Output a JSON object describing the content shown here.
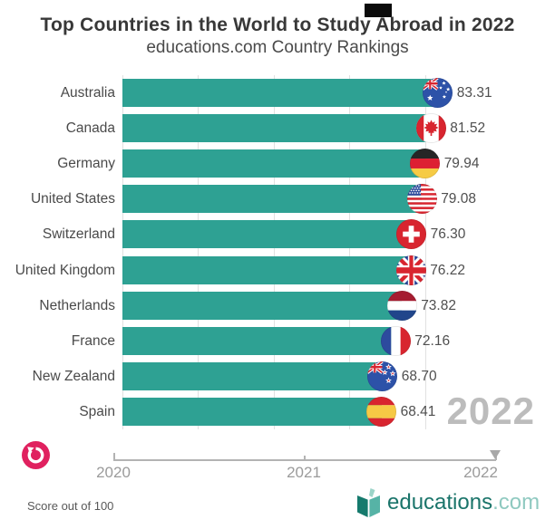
{
  "header": {
    "title": "Top Countries in the World to Study Abroad in 2022",
    "subtitle": "educations.com Country Rankings"
  },
  "chart_data": {
    "type": "bar",
    "orientation": "horizontal",
    "title": "Top Countries in the World to Study Abroad in 2022",
    "subtitle": "educations.com Country Rankings",
    "categories": [
      "Australia",
      "Canada",
      "Germany",
      "United States",
      "Switzerland",
      "United Kingdom",
      "Netherlands",
      "France",
      "New Zealand",
      "Spain"
    ],
    "values": [
      83.31,
      81.52,
      79.94,
      79.08,
      76.3,
      76.22,
      73.82,
      72.16,
      68.7,
      68.41
    ],
    "value_labels": [
      "83.31",
      "81.52",
      "79.94",
      "79.08",
      "76.30",
      "76.22",
      "73.82",
      "72.16",
      "68.70",
      "68.41"
    ],
    "flags": [
      "australia",
      "canada",
      "germany",
      "united-states",
      "switzerland",
      "united-kingdom",
      "netherlands",
      "france",
      "new-zealand",
      "spain"
    ],
    "xlim": [
      0,
      100
    ],
    "grid_values": [
      0,
      20,
      40,
      60,
      80
    ],
    "grid": "vertical-lines-no-tick-labels",
    "legend": "none",
    "bar_color": "#2EA193",
    "note": "Score out of 100"
  },
  "watermark": "2022",
  "timeline": {
    "labels": [
      "2020",
      "2021",
      "2022"
    ],
    "current_year": "2022"
  },
  "controls": {
    "replay_color": "#E0215F"
  },
  "footer": {
    "note": "Score out of 100",
    "logo_text": "educations",
    "logo_suffix": ".com"
  }
}
